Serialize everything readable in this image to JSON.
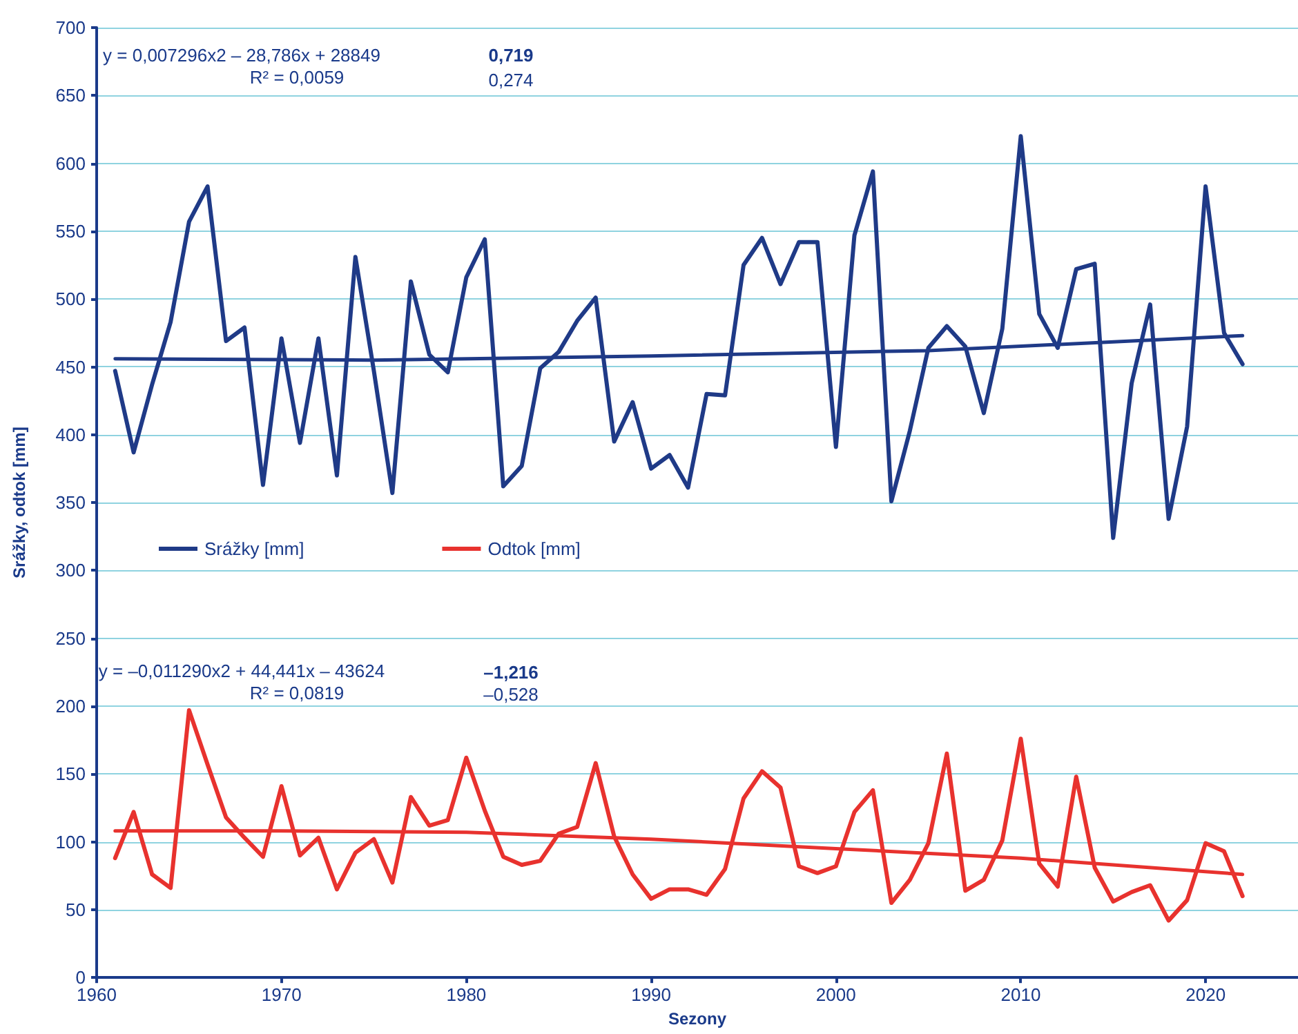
{
  "chart_data": {
    "type": "line",
    "xlabel": "Sezony",
    "ylabel": "Srážky, odtok [mm]",
    "x": [
      1961,
      1962,
      1963,
      1964,
      1965,
      1966,
      1967,
      1968,
      1969,
      1970,
      1971,
      1972,
      1973,
      1974,
      1975,
      1976,
      1977,
      1978,
      1979,
      1980,
      1981,
      1982,
      1983,
      1984,
      1985,
      1986,
      1987,
      1988,
      1989,
      1990,
      1991,
      1992,
      1993,
      1994,
      1995,
      1996,
      1997,
      1998,
      1999,
      2000,
      2001,
      2002,
      2003,
      2004,
      2005,
      2006,
      2007,
      2008,
      2009,
      2010,
      2011,
      2012,
      2013,
      2014,
      2015,
      2016,
      2017,
      2018,
      2019,
      2020,
      2021,
      2022
    ],
    "series": [
      {
        "name": "Srážky [mm]",
        "color": "#1f3a87",
        "values": [
          447,
          387,
          437,
          483,
          557,
          583,
          469,
          479,
          363,
          471,
          394,
          471,
          370,
          531,
          447,
          357,
          513,
          459,
          446,
          516,
          544,
          362,
          377,
          449,
          461,
          484,
          501,
          395,
          424,
          375,
          385,
          361,
          430,
          429,
          525,
          545,
          511,
          542,
          542,
          391,
          547,
          594,
          351,
          403,
          464,
          480,
          465,
          416,
          478,
          620,
          489,
          464,
          522,
          526,
          324,
          438,
          496,
          338,
          406,
          583,
          475,
          452
        ]
      },
      {
        "name": "Odtok [mm]",
        "color": "#e8322e",
        "values": [
          88,
          122,
          76,
          66,
          197,
          157,
          118,
          103,
          89,
          141,
          90,
          103,
          65,
          92,
          102,
          70,
          133,
          112,
          116,
          162,
          123,
          89,
          83,
          86,
          106,
          111,
          158,
          104,
          76,
          58,
          65,
          65,
          61,
          80,
          132,
          152,
          140,
          82,
          77,
          82,
          122,
          138,
          55,
          72,
          99,
          165,
          64,
          72,
          101,
          176,
          84,
          67,
          148,
          81,
          56,
          63,
          68,
          42,
          57,
          99,
          93,
          60
        ]
      },
      {
        "type": "line",
        "color": "#1f3a87",
        "x": [
          1961,
          1975,
          1990,
          2005,
          2022
        ],
        "values": [
          456,
          455,
          458,
          462,
          473
        ]
      },
      {
        "type": "line",
        "color": "#e8322e",
        "x": [
          1961,
          1970,
          1980,
          1990,
          2000,
          2010,
          2022
        ],
        "values": [
          108,
          108,
          107,
          102,
          95,
          88,
          76
        ]
      }
    ],
    "annotations": [
      "y = 0,007296x2 – 28,786x + 28849",
      "R² = 0,0059",
      "0,719",
      "0,274",
      "y = –0,011290x2 + 44,441x – 43624",
      "R² = 0,0819",
      "–1,216",
      "–0,528"
    ],
    "xlim": [
      1960,
      2025
    ],
    "xticks": [
      1960,
      1970,
      1980,
      1990,
      2000,
      2010,
      2020
    ],
    "ylim": [
      0,
      700
    ],
    "yticks": [
      0,
      50,
      100,
      150,
      200,
      250,
      300,
      350,
      400,
      450,
      500,
      550,
      600,
      650,
      700
    ],
    "grid": "y",
    "legend": "left",
    "marker": "none",
    "line_style": "solid"
  }
}
